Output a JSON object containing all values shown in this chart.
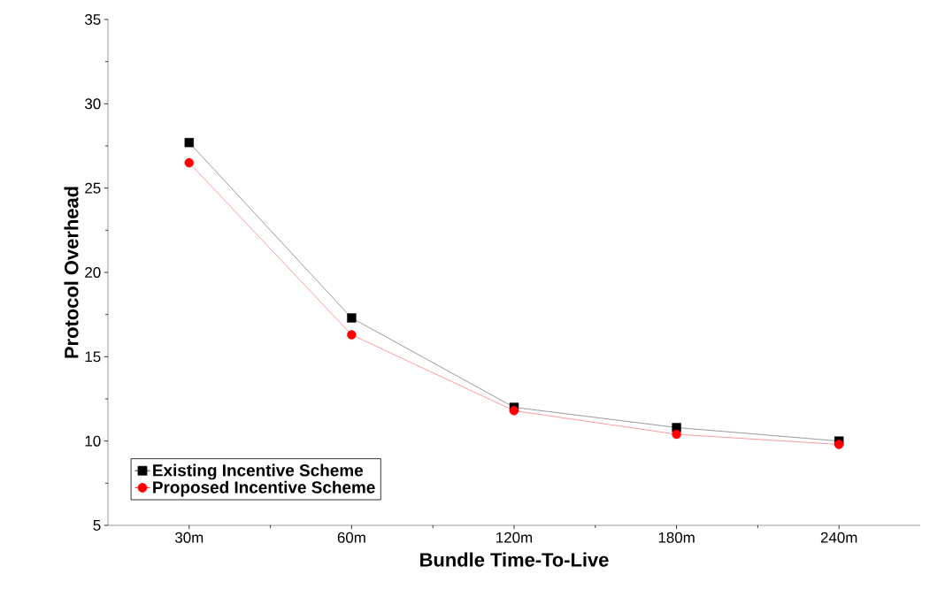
{
  "chart_data": {
    "type": "line",
    "xlabel": "Bundle Time-To-Live",
    "ylabel": "Protocol Overhead",
    "categories": [
      "30m",
      "60m",
      "120m",
      "180m",
      "240m"
    ],
    "series": [
      {
        "name": "Existing Incentive Scheme",
        "color": "#000000",
        "marker": "square",
        "values": [
          27.7,
          17.3,
          12.0,
          10.8,
          10.0
        ]
      },
      {
        "name": "Proposed Incentive Scheme",
        "color": "#ff0000",
        "marker": "circle",
        "values": [
          26.5,
          16.3,
          11.8,
          10.4,
          9.8
        ]
      }
    ],
    "ylim": [
      5,
      35
    ],
    "yticks": [
      5,
      10,
      15,
      20,
      25,
      30,
      35
    ],
    "grid": false,
    "legend": "bottom left",
    "line_style": "solid"
  }
}
